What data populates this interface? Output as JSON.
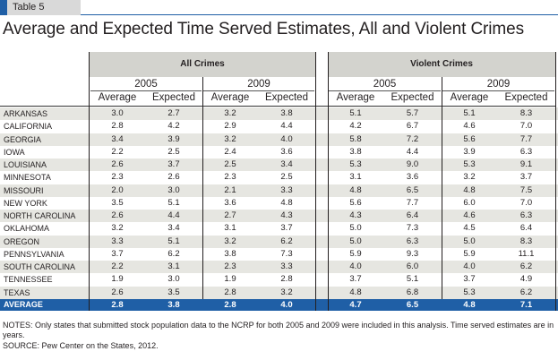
{
  "table_label": "Table 5",
  "title": "Average and Expected Time Served Estimates, All and Violent Crimes",
  "groups": {
    "all": "All Crimes",
    "violent": "Violent Crimes"
  },
  "years": [
    "2005",
    "2009",
    "2005",
    "2009"
  ],
  "column_headers": [
    "Average",
    "Expected",
    "Average",
    "Expected",
    "Average",
    "Expected",
    "Average",
    "Expected"
  ],
  "rows": [
    {
      "state": "Arkansas",
      "values": [
        "3.0",
        "2.7",
        "3.2",
        "3.8",
        "5.1",
        "5.7",
        "5.1",
        "8.3"
      ]
    },
    {
      "state": "California",
      "values": [
        "2.8",
        "4.2",
        "2.9",
        "4.4",
        "4.2",
        "6.7",
        "4.6",
        "7.0"
      ]
    },
    {
      "state": "Georgia",
      "values": [
        "3.4",
        "3.9",
        "3.2",
        "4.0",
        "5.8",
        "7.2",
        "5.6",
        "7.7"
      ]
    },
    {
      "state": "Iowa",
      "values": [
        "2.2",
        "2.5",
        "2.4",
        "3.6",
        "3.8",
        "4.4",
        "3.9",
        "6.3"
      ]
    },
    {
      "state": "Louisiana",
      "values": [
        "2.6",
        "3.7",
        "2.5",
        "3.4",
        "5.3",
        "9.0",
        "5.3",
        "9.1"
      ]
    },
    {
      "state": "Minnesota",
      "values": [
        "2.3",
        "2.6",
        "2.3",
        "2.5",
        "3.1",
        "3.6",
        "3.2",
        "3.7"
      ]
    },
    {
      "state": "Missouri",
      "values": [
        "2.0",
        "3.0",
        "2.1",
        "3.3",
        "4.8",
        "6.5",
        "4.8",
        "7.5"
      ]
    },
    {
      "state": "New York",
      "values": [
        "3.5",
        "5.1",
        "3.6",
        "4.8",
        "5.6",
        "7.7",
        "6.0",
        "7.0"
      ]
    },
    {
      "state": "North Carolina",
      "values": [
        "2.6",
        "4.4",
        "2.7",
        "4.3",
        "4.3",
        "6.4",
        "4.6",
        "6.3"
      ]
    },
    {
      "state": "Oklahoma",
      "values": [
        "3.2",
        "3.4",
        "3.1",
        "3.7",
        "5.0",
        "7.3",
        "4.5",
        "6.4"
      ]
    },
    {
      "state": "Oregon",
      "values": [
        "3.3",
        "5.1",
        "3.2",
        "6.2",
        "5.0",
        "6.3",
        "5.0",
        "8.3"
      ]
    },
    {
      "state": "Pennsylvania",
      "values": [
        "3.7",
        "6.2",
        "3.8",
        "7.3",
        "5.9",
        "9.3",
        "5.9",
        "11.1"
      ]
    },
    {
      "state": "South Carolina",
      "values": [
        "2.2",
        "3.1",
        "2.3",
        "3.3",
        "4.0",
        "6.0",
        "4.0",
        "6.2"
      ]
    },
    {
      "state": "Tennessee",
      "values": [
        "1.9",
        "3.0",
        "1.9",
        "2.8",
        "3.7",
        "5.1",
        "3.7",
        "4.9"
      ]
    },
    {
      "state": "Texas",
      "values": [
        "2.6",
        "3.5",
        "2.8",
        "3.2",
        "4.8",
        "6.8",
        "5.3",
        "6.2"
      ]
    }
  ],
  "average_row": {
    "state": "AVERAGE",
    "values": [
      "2.8",
      "3.8",
      "2.8",
      "4.0",
      "4.7",
      "6.5",
      "4.8",
      "7.1"
    ]
  },
  "notes": "NOTES: Only states that submitted stock population data to the NCRP for both 2005 and 2009 were included in this analysis. Time served estimates are in years.",
  "source": "SOURCE: Pew Center on the States, 2012.",
  "colors": {
    "accent": "#1f5fa6",
    "header_shade": "#d3d3ce",
    "row_shade": "#e6e6e1"
  }
}
